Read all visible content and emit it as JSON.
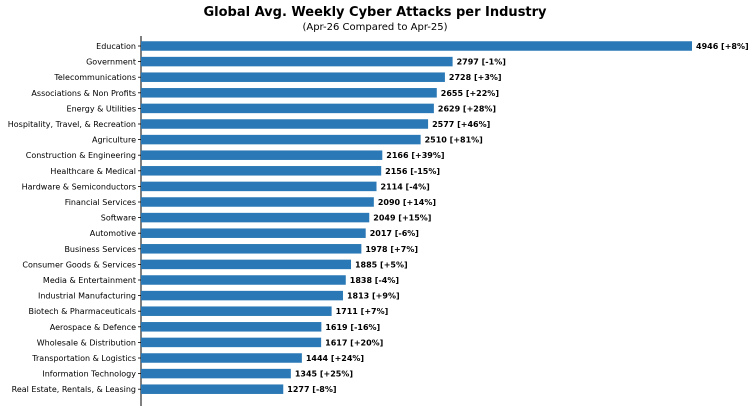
{
  "chart_data": {
    "type": "bar",
    "orientation": "horizontal",
    "title": "Global Avg. Weekly Cyber Attacks per Industry",
    "subtitle": "(Apr-26 Compared to Apr-25)",
    "xlim": [
      0,
      5000
    ],
    "grid": false,
    "bar_color": "#2a78b5",
    "categories": [
      "Education",
      "Government",
      "Telecommunications",
      "Associations & Non Profits",
      "Energy & Utilities",
      "Hospitality, Travel, & Recreation",
      "Agriculture",
      "Construction & Engineering",
      "Healthcare & Medical",
      "Hardware & Semiconductors",
      "Financial Services",
      "Software",
      "Automotive",
      "Business Services",
      "Consumer Goods & Services",
      "Media & Entertainment",
      "Industrial Manufacturing",
      "Biotech & Pharmaceuticals",
      "Aerospace & Defence",
      "Wholesale & Distribution",
      "Transportation & Logistics",
      "Information Technology",
      "Real Estate, Rentals, & Leasing"
    ],
    "values": [
      4946,
      2797,
      2728,
      2655,
      2629,
      2577,
      2510,
      2166,
      2156,
      2114,
      2090,
      2049,
      2017,
      1978,
      1885,
      1838,
      1813,
      1711,
      1619,
      1617,
      1444,
      1345,
      1277
    ],
    "labels": [
      "4946 [+8%]",
      "2797 [-1%]",
      "2728 [+3%]",
      "2655 [+22%]",
      "2629 [+28%]",
      "2577 [+46%]",
      "2510 [+81%]",
      "2166 [+39%]",
      "2156 [-15%]",
      "2114 [-4%]",
      "2090 [+14%]",
      "2049 [+15%]",
      "2017 [-6%]",
      "1978 [+7%]",
      "1885 [+5%]",
      "1838 [-4%]",
      "1813 [+9%]",
      "1711 [+7%]",
      "1619 [-16%]",
      "1617 [+20%]",
      "1444 [+24%]",
      "1345 [+25%]",
      "1277 [-8%]"
    ]
  }
}
